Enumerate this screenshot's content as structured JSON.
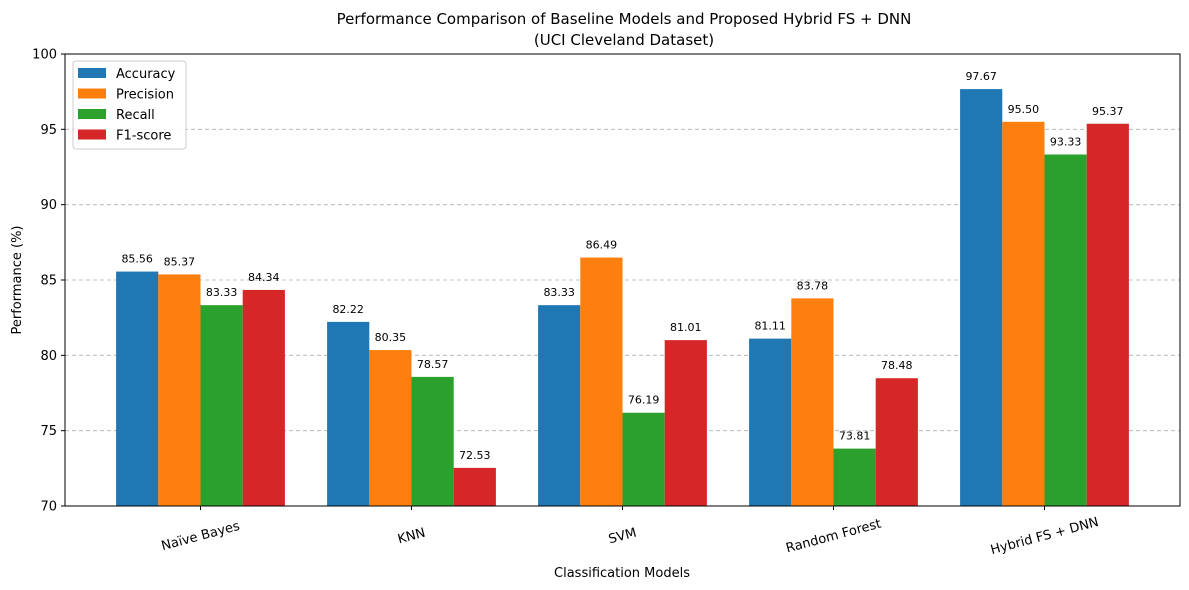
{
  "chart_data": {
    "type": "bar",
    "title": "Performance Comparison of Baseline Models and Proposed Hybrid FS + DNN",
    "subtitle": "(UCI Cleveland Dataset)",
    "xlabel": "Classification Models",
    "ylabel": "Performance (%)",
    "ylim": [
      70,
      100
    ],
    "yticks": [
      70,
      75,
      80,
      85,
      90,
      95,
      100
    ],
    "grid": "y-dashed",
    "legend_position": "top-left",
    "categories": [
      "Naïve Bayes",
      "KNN",
      "SVM",
      "Random Forest",
      "Hybrid FS + DNN"
    ],
    "series": [
      {
        "name": "Accuracy",
        "color": "#1f77b4",
        "values": [
          85.56,
          82.22,
          83.33,
          81.11,
          97.67
        ]
      },
      {
        "name": "Precision",
        "color": "#ff7f0e",
        "values": [
          85.37,
          80.35,
          86.49,
          83.78,
          95.5
        ]
      },
      {
        "name": "Recall",
        "color": "#2ca02c",
        "values": [
          83.33,
          78.57,
          76.19,
          73.81,
          93.33
        ]
      },
      {
        "name": "F1-score",
        "color": "#d62728",
        "values": [
          84.34,
          72.53,
          81.01,
          78.48,
          95.37
        ]
      }
    ]
  }
}
